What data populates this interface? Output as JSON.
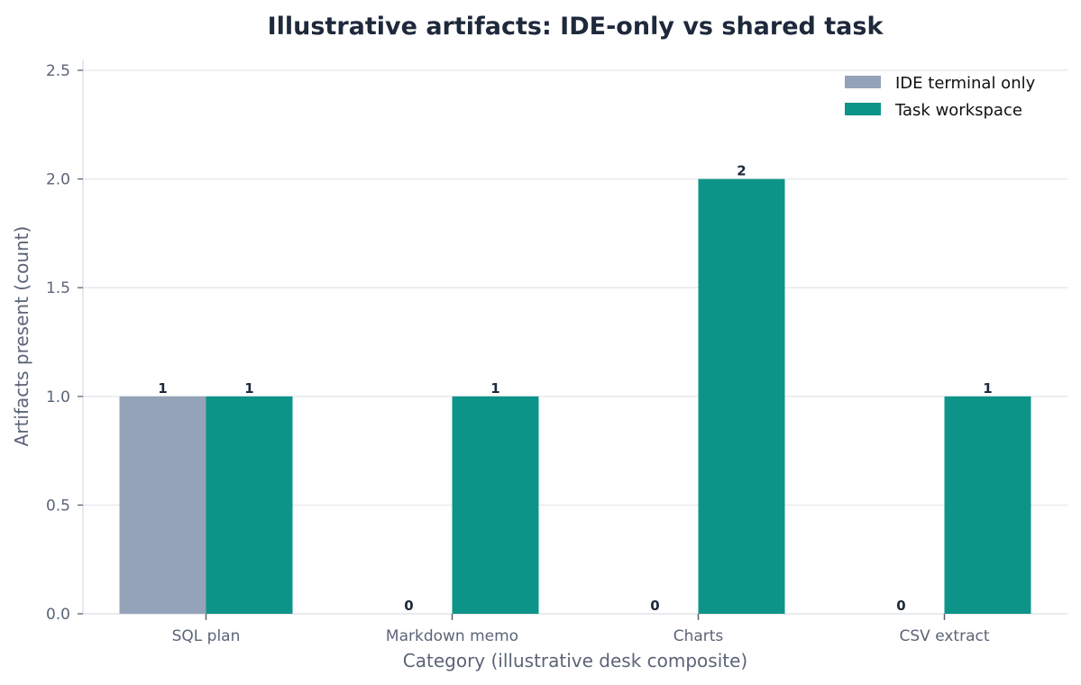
{
  "chart_data": {
    "type": "bar",
    "title": "Illustrative artifacts: IDE-only vs shared task",
    "xlabel": "Category (illustrative desk composite)",
    "ylabel": "Artifacts present (count)",
    "categories": [
      "SQL plan",
      "Markdown memo",
      "Charts",
      "CSV extract"
    ],
    "series": [
      {
        "name": "IDE terminal only",
        "values": [
          1,
          0,
          0,
          0
        ],
        "color": "#94a3b8"
      },
      {
        "name": "Task workspace",
        "values": [
          1,
          1,
          2,
          1
        ],
        "color": "#0d9488"
      }
    ],
    "ylim": [
      0,
      2.5
    ],
    "yticks": [
      "0.0",
      "0.5",
      "1.0",
      "1.5",
      "2.0",
      "2.5"
    ],
    "grid": true,
    "legend_position": "top-right"
  },
  "colors": {
    "title": "#1e293b",
    "axis_text": "#5b6477",
    "grid": "#e5e7eb",
    "axis_line": "#d9dde3",
    "data_label": "#1e293b",
    "legend_text": "#111111"
  }
}
